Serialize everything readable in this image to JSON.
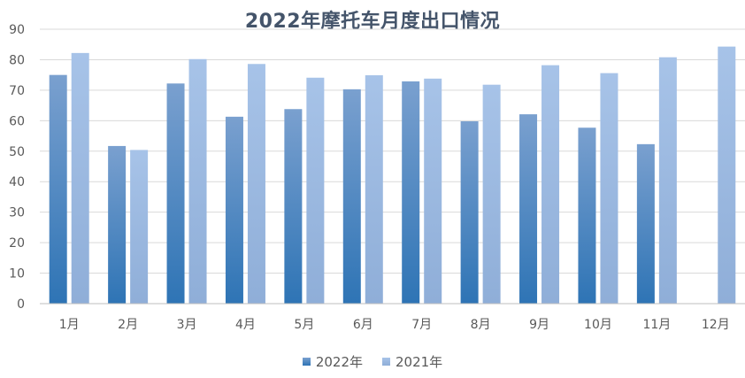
{
  "chart_data": {
    "type": "bar",
    "title": "2022年摩托车月度出口情况",
    "categories": [
      "1月",
      "2月",
      "3月",
      "4月",
      "5月",
      "6月",
      "7月",
      "8月",
      "9月",
      "10月",
      "11月",
      "12月"
    ],
    "series": [
      {
        "name": "2022年",
        "values": [
          75,
          51.7,
          72.2,
          61.3,
          63.8,
          70.3,
          72.9,
          59.8,
          62.1,
          57.7,
          52.3,
          null
        ],
        "color_top": "#7aa0cf",
        "color_bottom": "#2e74b5"
      },
      {
        "name": "2021年",
        "values": [
          82.2,
          50.4,
          80.2,
          78.6,
          74.1,
          74.9,
          73.8,
          71.8,
          78.2,
          75.6,
          80.8,
          84.3
        ],
        "color_top": "#a7c3e8",
        "color_bottom": "#8faed8"
      }
    ],
    "ylim": [
      0,
      90
    ],
    "yticks": [
      0,
      10,
      20,
      30,
      40,
      50,
      60,
      70,
      80,
      90
    ],
    "ytick_labels": [
      "0",
      "10",
      "20",
      "30",
      "40",
      "50",
      "60",
      "70",
      "80",
      "90"
    ],
    "xlabel": "",
    "ylabel": "",
    "grid": true,
    "legend_position": "bottom",
    "gridline_color": "#d9d9d9",
    "axis_color": "#bfbfbf"
  }
}
